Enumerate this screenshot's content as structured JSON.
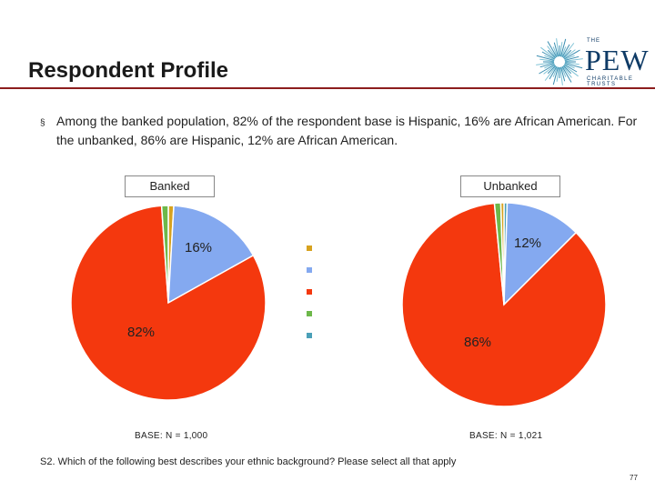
{
  "slide": {
    "title": "Respondent Profile",
    "bullet": "Among the banked population, 82% of the respondent base is Hispanic, 16% are African American.  For the unbanked, 86% are Hispanic, 12% are African American.",
    "bullet_mark": "§",
    "question": "S2.  Which of the following best describes your ethnic background?  Please select all that apply",
    "page_number": "77"
  },
  "logo": {
    "the": "THE",
    "name": "PEW",
    "subtitle": "CHARITABLE TRUSTS",
    "color": "#0f3b66"
  },
  "colors": {
    "orange_small": "#d7a21f",
    "blue": "#84a9f0",
    "red": "#f4380e",
    "green": "#6db84a",
    "teal": "#4aa0b8"
  },
  "chart_data": [
    {
      "type": "pie",
      "title": "Banked",
      "base_note": "BASE: N = 1,000",
      "slices": [
        {
          "key": "orange_small",
          "value": 0.9,
          "label": ""
        },
        {
          "key": "blue",
          "value": 16,
          "label": "16%"
        },
        {
          "key": "red",
          "value": 82,
          "label": "82%"
        },
        {
          "key": "green",
          "value": 1.1,
          "label": ""
        }
      ]
    },
    {
      "type": "pie",
      "title": "Unbanked",
      "base_note": "BASE: N = 1,021",
      "slices": [
        {
          "key": "teal",
          "value": 0.5,
          "label": ""
        },
        {
          "key": "blue",
          "value": 12,
          "label": "12%"
        },
        {
          "key": "red",
          "value": 86,
          "label": "86%"
        },
        {
          "key": "green",
          "value": 1.0,
          "label": ""
        },
        {
          "key": "orange_small",
          "value": 0.5,
          "label": ""
        }
      ]
    }
  ],
  "legend": {
    "keys": [
      "orange_small",
      "blue",
      "red",
      "green",
      "teal"
    ],
    "labels": [
      "",
      "",
      "",
      "",
      ""
    ]
  }
}
